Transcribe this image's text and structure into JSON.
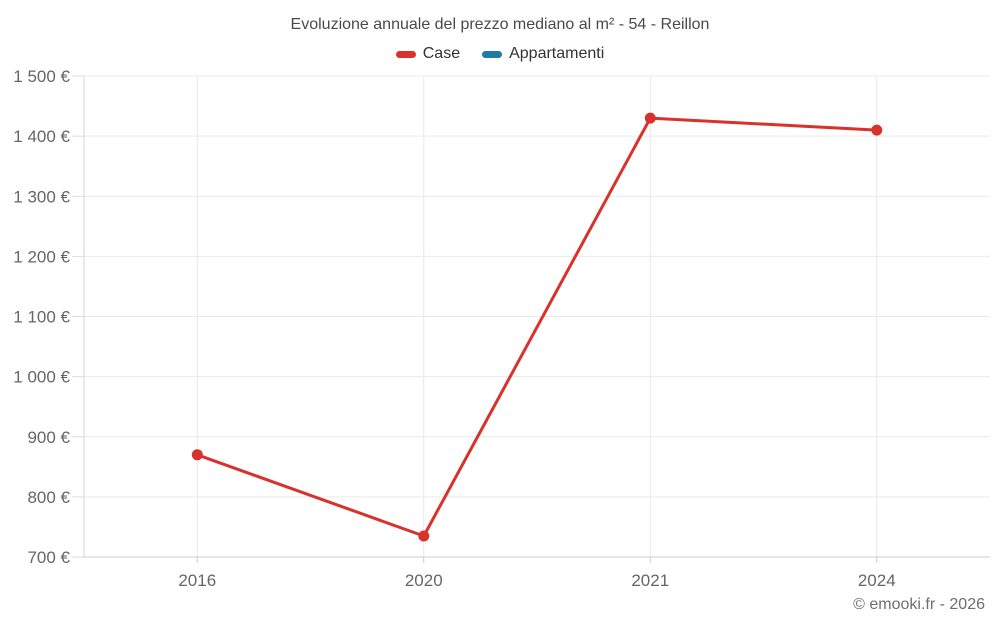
{
  "header": {
    "title": "Evoluzione annuale del prezzo mediano al m² - 54 - Reillon"
  },
  "legend": {
    "items": [
      {
        "id": "case",
        "label": "Case",
        "color": "#d8322c"
      },
      {
        "id": "appartamenti",
        "label": "Appartamenti",
        "color": "#1d7ca6"
      }
    ]
  },
  "footer": {
    "credit": "© emooki.fr - 2026"
  },
  "chart_data": {
    "type": "line",
    "title": "Evoluzione annuale del prezzo mediano al m² - 54 - Reillon",
    "categories": [
      "2016",
      "2020",
      "2021",
      "2024"
    ],
    "series": [
      {
        "name": "Case",
        "id": "case",
        "color": "#d8322c",
        "values": [
          870,
          735,
          1430,
          1410
        ]
      },
      {
        "name": "Appartamenti",
        "id": "appartamenti",
        "color": "#1d7ca6",
        "values": []
      }
    ],
    "xlabel": "",
    "ylabel": "",
    "ylim": [
      700,
      1500
    ],
    "yticks": [
      {
        "value": 700,
        "label": "700 €"
      },
      {
        "value": 800,
        "label": "800 €"
      },
      {
        "value": 900,
        "label": "900 €"
      },
      {
        "value": 1000,
        "label": "1 000 €"
      },
      {
        "value": 1100,
        "label": "1 100 €"
      },
      {
        "value": 1200,
        "label": "1 200 €"
      },
      {
        "value": 1300,
        "label": "1 300 €"
      },
      {
        "value": 1400,
        "label": "1 400 €"
      },
      {
        "value": 1500,
        "label": "1 500 €"
      }
    ],
    "grid": true,
    "legend_position": "top",
    "currency": "€"
  }
}
